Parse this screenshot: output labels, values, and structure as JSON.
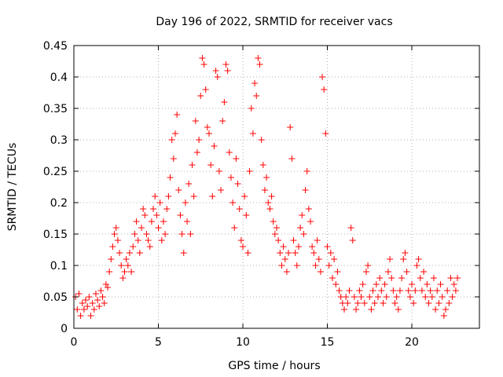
{
  "chart_data": {
    "type": "scatter",
    "title": "Day 196 of 2022, SRMTID for receiver vacs",
    "xlabel": "GPS time / hours",
    "ylabel": "SRMTID / TECUs",
    "xlim": [
      0,
      24
    ],
    "ylim": [
      0,
      0.45
    ],
    "x_ticks": [
      0,
      5,
      10,
      15,
      20
    ],
    "x_tick_labels": [
      "0",
      "5",
      "10",
      "15",
      "20"
    ],
    "y_ticks": [
      0,
      0.05,
      0.1,
      0.15,
      0.2,
      0.25,
      0.3,
      0.35,
      0.4,
      0.45
    ],
    "y_tick_labels": [
      "0",
      "0.05",
      "0.1",
      "0.15",
      "0.2",
      "0.25",
      "0.3",
      "0.35",
      "0.4",
      "0.45"
    ],
    "grid": true,
    "marker": "+",
    "series": [
      {
        "name": "SRMTID",
        "color": "#ff0000",
        "points": [
          [
            0.1,
            0.05
          ],
          [
            0.2,
            0.03
          ],
          [
            0.3,
            0.055
          ],
          [
            0.4,
            0.02
          ],
          [
            0.5,
            0.04
          ],
          [
            0.6,
            0.03
          ],
          [
            0.7,
            0.045
          ],
          [
            0.8,
            0.035
          ],
          [
            0.9,
            0.05
          ],
          [
            1.0,
            0.02
          ],
          [
            1.1,
            0.04
          ],
          [
            1.2,
            0.03
          ],
          [
            1.3,
            0.055
          ],
          [
            1.4,
            0.045
          ],
          [
            1.5,
            0.035
          ],
          [
            1.6,
            0.06
          ],
          [
            1.7,
            0.05
          ],
          [
            1.8,
            0.04
          ],
          [
            1.9,
            0.07
          ],
          [
            2.0,
            0.065
          ],
          [
            2.1,
            0.09
          ],
          [
            2.2,
            0.11
          ],
          [
            2.3,
            0.13
          ],
          [
            2.4,
            0.15
          ],
          [
            2.5,
            0.16
          ],
          [
            2.6,
            0.14
          ],
          [
            2.7,
            0.12
          ],
          [
            2.8,
            0.1
          ],
          [
            2.9,
            0.08
          ],
          [
            3.0,
            0.09
          ],
          [
            3.1,
            0.11
          ],
          [
            3.2,
            0.1
          ],
          [
            3.3,
            0.12
          ],
          [
            3.4,
            0.09
          ],
          [
            3.5,
            0.13
          ],
          [
            3.6,
            0.15
          ],
          [
            3.7,
            0.17
          ],
          [
            3.8,
            0.14
          ],
          [
            3.9,
            0.12
          ],
          [
            4.0,
            0.16
          ],
          [
            4.1,
            0.19
          ],
          [
            4.2,
            0.18
          ],
          [
            4.3,
            0.15
          ],
          [
            4.4,
            0.14
          ],
          [
            4.5,
            0.13
          ],
          [
            4.6,
            0.17
          ],
          [
            4.7,
            0.19
          ],
          [
            4.8,
            0.21
          ],
          [
            4.9,
            0.18
          ],
          [
            5.0,
            0.16
          ],
          [
            5.1,
            0.2
          ],
          [
            5.2,
            0.14
          ],
          [
            5.3,
            0.17
          ],
          [
            5.4,
            0.15
          ],
          [
            5.5,
            0.19
          ],
          [
            5.6,
            0.21
          ],
          [
            5.7,
            0.24
          ],
          [
            5.8,
            0.3
          ],
          [
            5.9,
            0.27
          ],
          [
            6.0,
            0.31
          ],
          [
            6.1,
            0.34
          ],
          [
            6.2,
            0.22
          ],
          [
            6.3,
            0.18
          ],
          [
            6.4,
            0.15
          ],
          [
            6.5,
            0.12
          ],
          [
            6.6,
            0.2
          ],
          [
            6.7,
            0.17
          ],
          [
            6.8,
            0.23
          ],
          [
            6.9,
            0.15
          ],
          [
            7.0,
            0.26
          ],
          [
            7.1,
            0.21
          ],
          [
            7.2,
            0.33
          ],
          [
            7.3,
            0.28
          ],
          [
            7.4,
            0.3
          ],
          [
            7.5,
            0.37
          ],
          [
            7.6,
            0.43
          ],
          [
            7.7,
            0.42
          ],
          [
            7.8,
            0.38
          ],
          [
            7.9,
            0.32
          ],
          [
            8.0,
            0.31
          ],
          [
            8.1,
            0.26
          ],
          [
            8.2,
            0.21
          ],
          [
            8.3,
            0.29
          ],
          [
            8.4,
            0.41
          ],
          [
            8.5,
            0.4
          ],
          [
            8.6,
            0.25
          ],
          [
            8.7,
            0.22
          ],
          [
            8.8,
            0.33
          ],
          [
            8.9,
            0.36
          ],
          [
            9.0,
            0.42
          ],
          [
            9.1,
            0.41
          ],
          [
            9.2,
            0.28
          ],
          [
            9.3,
            0.24
          ],
          [
            9.4,
            0.2
          ],
          [
            9.5,
            0.16
          ],
          [
            9.6,
            0.27
          ],
          [
            9.7,
            0.23
          ],
          [
            9.8,
            0.19
          ],
          [
            9.9,
            0.14
          ],
          [
            10.0,
            0.13
          ],
          [
            10.1,
            0.21
          ],
          [
            10.2,
            0.18
          ],
          [
            10.3,
            0.12
          ],
          [
            10.4,
            0.25
          ],
          [
            10.5,
            0.35
          ],
          [
            10.6,
            0.31
          ],
          [
            10.7,
            0.39
          ],
          [
            10.8,
            0.37
          ],
          [
            10.9,
            0.43
          ],
          [
            11.0,
            0.42
          ],
          [
            11.1,
            0.3
          ],
          [
            11.2,
            0.26
          ],
          [
            11.3,
            0.22
          ],
          [
            11.4,
            0.24
          ],
          [
            11.5,
            0.2
          ],
          [
            11.6,
            0.19
          ],
          [
            11.7,
            0.21
          ],
          [
            11.8,
            0.17
          ],
          [
            11.9,
            0.15
          ],
          [
            12.0,
            0.16
          ],
          [
            12.1,
            0.14
          ],
          [
            12.2,
            0.12
          ],
          [
            12.3,
            0.1
          ],
          [
            12.4,
            0.13
          ],
          [
            12.5,
            0.11
          ],
          [
            12.6,
            0.09
          ],
          [
            12.7,
            0.12
          ],
          [
            12.8,
            0.32
          ],
          [
            12.9,
            0.27
          ],
          [
            13.0,
            0.14
          ],
          [
            13.1,
            0.12
          ],
          [
            13.2,
            0.1
          ],
          [
            13.3,
            0.13
          ],
          [
            13.4,
            0.16
          ],
          [
            13.5,
            0.18
          ],
          [
            13.6,
            0.15
          ],
          [
            13.7,
            0.22
          ],
          [
            13.8,
            0.25
          ],
          [
            13.9,
            0.19
          ],
          [
            14.0,
            0.17
          ],
          [
            14.1,
            0.13
          ],
          [
            14.2,
            0.12
          ],
          [
            14.3,
            0.1
          ],
          [
            14.4,
            0.14
          ],
          [
            14.5,
            0.11
          ],
          [
            14.6,
            0.09
          ],
          [
            14.7,
            0.4
          ],
          [
            14.8,
            0.38
          ],
          [
            14.9,
            0.31
          ],
          [
            15.0,
            0.13
          ],
          [
            15.1,
            0.1
          ],
          [
            15.2,
            0.12
          ],
          [
            15.3,
            0.08
          ],
          [
            15.4,
            0.11
          ],
          [
            15.5,
            0.07
          ],
          [
            15.6,
            0.09
          ],
          [
            15.7,
            0.06
          ],
          [
            15.8,
            0.05
          ],
          [
            15.9,
            0.04
          ],
          [
            16.0,
            0.03
          ],
          [
            16.1,
            0.05
          ],
          [
            16.2,
            0.04
          ],
          [
            16.3,
            0.06
          ],
          [
            16.4,
            0.16
          ],
          [
            16.5,
            0.14
          ],
          [
            16.6,
            0.05
          ],
          [
            16.7,
            0.03
          ],
          [
            16.8,
            0.04
          ],
          [
            16.9,
            0.06
          ],
          [
            17.0,
            0.05
          ],
          [
            17.1,
            0.07
          ],
          [
            17.2,
            0.04
          ],
          [
            17.3,
            0.09
          ],
          [
            17.4,
            0.1
          ],
          [
            17.5,
            0.05
          ],
          [
            17.6,
            0.03
          ],
          [
            17.7,
            0.06
          ],
          [
            17.8,
            0.04
          ],
          [
            17.9,
            0.07
          ],
          [
            18.0,
            0.05
          ],
          [
            18.1,
            0.08
          ],
          [
            18.2,
            0.06
          ],
          [
            18.3,
            0.04
          ],
          [
            18.4,
            0.07
          ],
          [
            18.5,
            0.05
          ],
          [
            18.6,
            0.09
          ],
          [
            18.7,
            0.11
          ],
          [
            18.8,
            0.08
          ],
          [
            18.9,
            0.06
          ],
          [
            19.0,
            0.04
          ],
          [
            19.1,
            0.05
          ],
          [
            19.2,
            0.03
          ],
          [
            19.3,
            0.06
          ],
          [
            19.4,
            0.08
          ],
          [
            19.5,
            0.11
          ],
          [
            19.6,
            0.12
          ],
          [
            19.7,
            0.09
          ],
          [
            19.8,
            0.06
          ],
          [
            19.9,
            0.05
          ],
          [
            20.0,
            0.07
          ],
          [
            20.1,
            0.04
          ],
          [
            20.2,
            0.06
          ],
          [
            20.3,
            0.1
          ],
          [
            20.4,
            0.11
          ],
          [
            20.5,
            0.08
          ],
          [
            20.6,
            0.06
          ],
          [
            20.7,
            0.09
          ],
          [
            20.8,
            0.05
          ],
          [
            20.9,
            0.07
          ],
          [
            21.0,
            0.04
          ],
          [
            21.1,
            0.06
          ],
          [
            21.2,
            0.05
          ],
          [
            21.3,
            0.08
          ],
          [
            21.4,
            0.03
          ],
          [
            21.5,
            0.06
          ],
          [
            21.6,
            0.04
          ],
          [
            21.7,
            0.07
          ],
          [
            21.8,
            0.05
          ],
          [
            21.9,
            0.02
          ],
          [
            22.0,
            0.03
          ],
          [
            22.1,
            0.06
          ],
          [
            22.2,
            0.04
          ],
          [
            22.3,
            0.08
          ],
          [
            22.4,
            0.05
          ],
          [
            22.5,
            0.07
          ],
          [
            22.6,
            0.06
          ],
          [
            22.7,
            0.08
          ]
        ]
      }
    ]
  }
}
